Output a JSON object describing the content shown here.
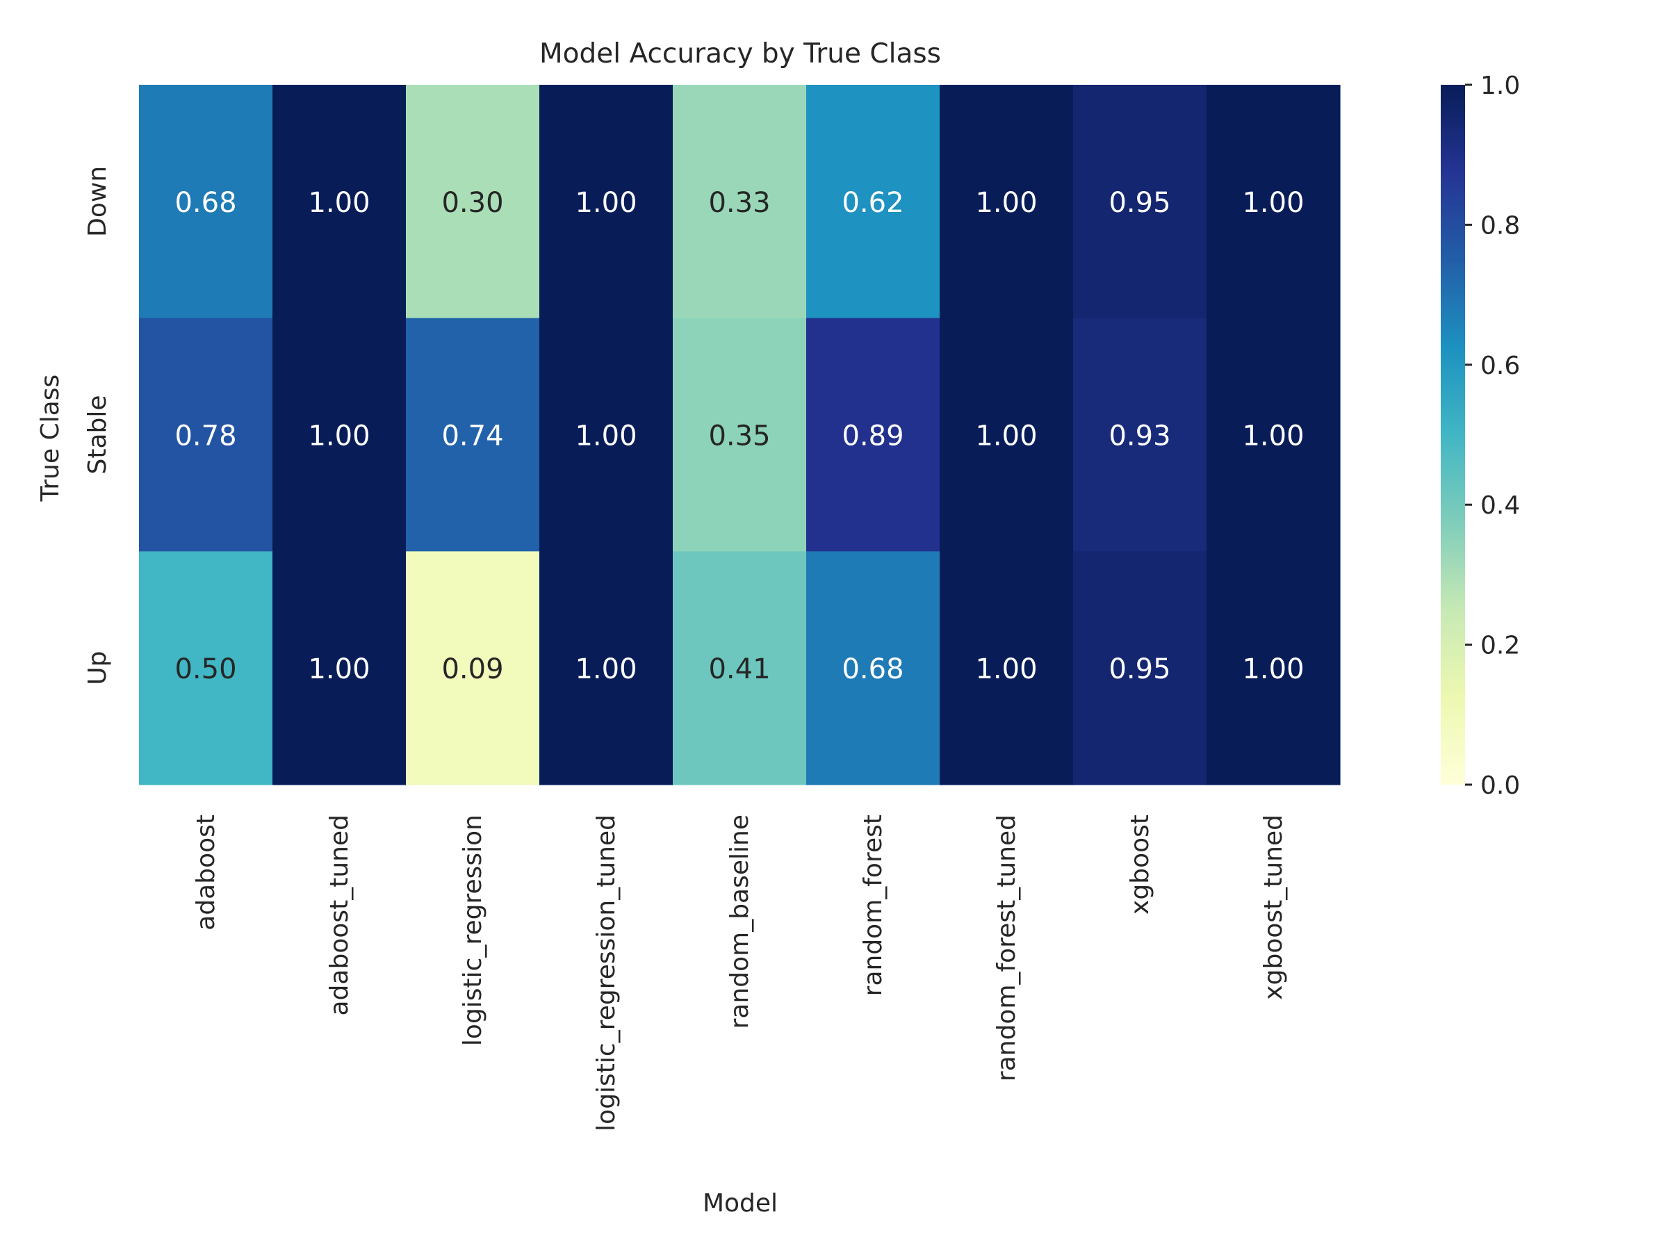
{
  "chart_data": {
    "type": "heatmap",
    "title": "Model Accuracy by True Class",
    "xlabel": "Model",
    "ylabel": "True Class",
    "colormap": "YlGnBu",
    "vmin": 0.0,
    "vmax": 1.0,
    "x_categories": [
      "adaboost",
      "adaboost_tuned",
      "logistic_regression",
      "logistic_regression_tuned",
      "random_baseline",
      "random_forest",
      "random_forest_tuned",
      "xgboost",
      "xgboost_tuned"
    ],
    "y_categories": [
      "Down",
      "Stable",
      "Up"
    ],
    "values": [
      [
        0.68,
        1.0,
        0.3,
        1.0,
        0.33,
        0.62,
        1.0,
        0.95,
        1.0
      ],
      [
        0.78,
        1.0,
        0.74,
        1.0,
        0.35,
        0.89,
        1.0,
        0.93,
        1.0
      ],
      [
        0.5,
        1.0,
        0.09,
        1.0,
        0.41,
        0.68,
        1.0,
        0.95,
        1.0
      ]
    ],
    "value_labels": [
      [
        "0.68",
        "1.00",
        "0.30",
        "1.00",
        "0.33",
        "0.62",
        "1.00",
        "0.95",
        "1.00"
      ],
      [
        "0.78",
        "1.00",
        "0.74",
        "1.00",
        "0.35",
        "0.89",
        "1.00",
        "0.93",
        "1.00"
      ],
      [
        "0.50",
        "1.00",
        "0.09",
        "1.00",
        "0.41",
        "0.68",
        "1.00",
        "0.95",
        "1.00"
      ]
    ],
    "colorbar": {
      "ticks": [
        0.0,
        0.2,
        0.4,
        0.6,
        0.8,
        1.0
      ],
      "tick_labels": [
        "0.0",
        "0.2",
        "0.4",
        "0.6",
        "0.8",
        "1.0"
      ]
    },
    "grid": false,
    "legend": "colorbar-right"
  }
}
